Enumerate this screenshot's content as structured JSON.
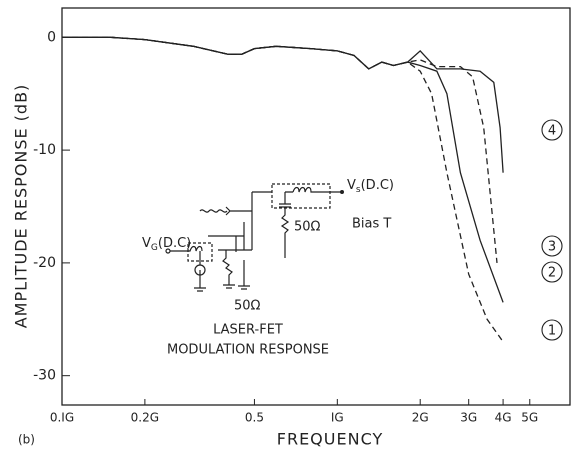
{
  "chart_data": {
    "type": "line",
    "ylabel": "AMPLITUDE RESPONSE (dB)",
    "xlabel": "FREQUENCY",
    "xscale": "log",
    "grid": false,
    "xlim": [
      0.1,
      7
    ],
    "ylim": [
      -32.6,
      2.6
    ],
    "xticks": [
      {
        "value": 0.1,
        "label": "0.IG"
      },
      {
        "value": 0.2,
        "label": "0.2G"
      },
      {
        "value": 0.5,
        "label": "0.5"
      },
      {
        "value": 1,
        "label": "IG"
      },
      {
        "value": 2,
        "label": "2G"
      },
      {
        "value": 3,
        "label": "3G"
      },
      {
        "value": 4,
        "label": "4G"
      },
      {
        "value": 5,
        "label": "5G"
      }
    ],
    "yticks": [
      0,
      -10,
      -20,
      -30
    ],
    "series": [
      {
        "name": "1",
        "color": "#222",
        "style": "dashed",
        "x": [
          0.1,
          0.15,
          0.2,
          0.3,
          0.4,
          0.45,
          0.5,
          0.6,
          0.8,
          1.0,
          1.15,
          1.3,
          1.45,
          1.6,
          1.8,
          2.0,
          2.2,
          2.5,
          3.0,
          3.5,
          4.0
        ],
        "values": [
          0,
          0,
          -0.2,
          -0.8,
          -1.5,
          -1.5,
          -1,
          -0.8,
          -1,
          -1.2,
          -1.6,
          -2.8,
          -2.2,
          -2.5,
          -2.2,
          -3,
          -5,
          -12,
          -21,
          -25,
          -27
        ]
      },
      {
        "name": "2",
        "color": "#222",
        "style": "solid",
        "x": [
          0.1,
          0.15,
          0.2,
          0.3,
          0.4,
          0.45,
          0.5,
          0.6,
          0.8,
          1.0,
          1.15,
          1.3,
          1.45,
          1.6,
          1.8,
          2.0,
          2.3,
          2.5,
          2.8,
          3.3,
          4.0
        ],
        "values": [
          0,
          0,
          -0.2,
          -0.8,
          -1.5,
          -1.5,
          -1,
          -0.8,
          -1,
          -1.2,
          -1.6,
          -2.8,
          -2.2,
          -2.5,
          -2.2,
          -2.5,
          -3,
          -5,
          -12,
          -18,
          -23.5
        ]
      },
      {
        "name": "3",
        "color": "#222",
        "style": "dashed",
        "x": [
          0.1,
          0.15,
          0.2,
          0.3,
          0.4,
          0.45,
          0.5,
          0.6,
          0.8,
          1.0,
          1.15,
          1.3,
          1.45,
          1.6,
          1.8,
          2.0,
          2.3,
          2.8,
          3.1,
          3.4,
          3.8
        ],
        "values": [
          0,
          0,
          -0.2,
          -0.8,
          -1.5,
          -1.5,
          -1,
          -0.8,
          -1,
          -1.2,
          -1.6,
          -2.8,
          -2.2,
          -2.5,
          -2.2,
          -2,
          -2.6,
          -2.6,
          -3.5,
          -8,
          -20
        ]
      },
      {
        "name": "4",
        "color": "#222",
        "style": "solid",
        "x": [
          0.1,
          0.15,
          0.2,
          0.3,
          0.4,
          0.45,
          0.5,
          0.6,
          0.8,
          1.0,
          1.15,
          1.3,
          1.45,
          1.6,
          1.8,
          2.0,
          2.3,
          2.8,
          3.3,
          3.7,
          3.9,
          4.0
        ],
        "values": [
          0,
          0,
          -0.2,
          -0.8,
          -1.5,
          -1.5,
          -1,
          -0.8,
          -1,
          -1.2,
          -1.6,
          -2.8,
          -2.2,
          -2.5,
          -2.2,
          -1.2,
          -2.8,
          -2.8,
          -3,
          -4,
          -8,
          -12
        ]
      }
    ],
    "annotations": {
      "vg": "V",
      "vg_sub": "G",
      "vg_rest": "(D.C)",
      "vs": "V",
      "vs_sub": "s",
      "vs_rest": "(D.C)",
      "r1": "50Ω",
      "r2": "50Ω",
      "bias": "Bias T",
      "caption1": "LASER-FET",
      "caption2": "MODULATION RESPONSE",
      "panel": "(b)"
    }
  }
}
